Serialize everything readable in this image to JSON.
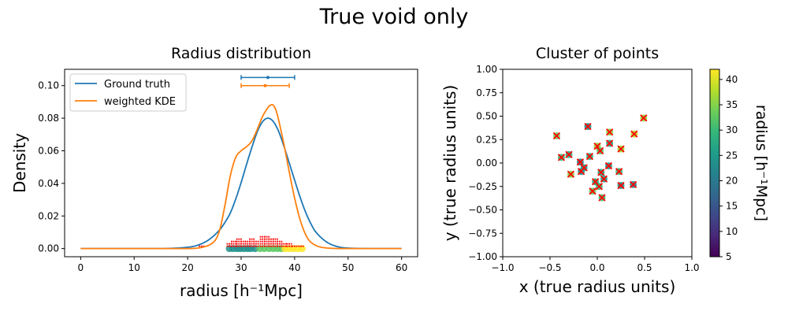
{
  "figure": {
    "suptitle": "True void only"
  },
  "chart_data": [
    {
      "type": "line",
      "title": "Radius distribution",
      "xlabel": "radius [h⁻¹Mpc]",
      "ylabel": "Density",
      "xlim": [
        -3,
        63
      ],
      "ylim": [
        -0.005,
        0.11
      ],
      "xticks": [
        0,
        10,
        20,
        30,
        40,
        50,
        60
      ],
      "yticks": [
        0.0,
        0.02,
        0.04,
        0.06,
        0.08,
        0.1
      ],
      "xtick_labels": [
        "0",
        "10",
        "20",
        "30",
        "40",
        "50",
        "60"
      ],
      "ytick_labels": [
        "0.00",
        "0.02",
        "0.04",
        "0.06",
        "0.08",
        "0.10"
      ],
      "legend_position": "upper-left",
      "series": [
        {
          "name": "Ground truth",
          "color": "#1f77b4",
          "x": [
            0,
            15,
            20,
            22,
            24,
            26,
            27,
            28,
            29,
            30,
            31,
            32,
            33,
            34,
            35,
            36,
            37,
            38,
            39,
            40,
            41,
            42,
            43,
            44,
            46,
            48,
            50,
            55,
            60
          ],
          "y": [
            0,
            0,
            0.0008,
            0.0022,
            0.0055,
            0.0115,
            0.0162,
            0.022,
            0.0305,
            0.0405,
            0.0515,
            0.062,
            0.0715,
            0.0778,
            0.08,
            0.078,
            0.072,
            0.0628,
            0.0525,
            0.042,
            0.0318,
            0.0228,
            0.0155,
            0.01,
            0.004,
            0.0012,
            0.0003,
            0,
            0
          ]
        },
        {
          "name": "weighted KDE",
          "color": "#ff7f0e",
          "x": [
            0,
            20,
            23,
            25,
            26,
            27,
            28,
            29,
            30,
            31,
            32,
            33,
            34,
            35,
            35.5,
            36,
            36.5,
            37,
            38,
            39,
            40,
            41,
            42,
            43,
            45,
            50,
            60
          ],
          "y": [
            0,
            0,
            0.001,
            0.0045,
            0.0115,
            0.027,
            0.045,
            0.056,
            0.06,
            0.0625,
            0.066,
            0.073,
            0.081,
            0.0865,
            0.088,
            0.088,
            0.085,
            0.079,
            0.064,
            0.047,
            0.031,
            0.018,
            0.009,
            0.004,
            0.0008,
            0,
            0
          ]
        }
      ],
      "errorbars": [
        {
          "series": "Ground truth",
          "color": "#1f77b4",
          "center": 35,
          "low": 30,
          "high": 40,
          "y": 0.105
        },
        {
          "series": "weighted KDE",
          "color": "#ff7f0e",
          "center": 34.5,
          "low": 30,
          "high": 39,
          "y": 0.1
        }
      ],
      "rug": {
        "marker_colors": [
          "#21908d",
          "#5dc963",
          "#fde725",
          "#ff0000"
        ],
        "points": [
          {
            "x": 27.8,
            "c": 0
          },
          {
            "x": 28.5,
            "c": 0
          },
          {
            "x": 29.2,
            "c": 0
          },
          {
            "x": 29.8,
            "c": 0
          },
          {
            "x": 30.5,
            "c": 0
          },
          {
            "x": 31.2,
            "c": 0
          },
          {
            "x": 31.8,
            "c": 0
          },
          {
            "x": 32.6,
            "c": 0
          },
          {
            "x": 33.5,
            "c": 1
          },
          {
            "x": 34.3,
            "c": 1
          },
          {
            "x": 35.2,
            "c": 1
          },
          {
            "x": 36.0,
            "c": 1
          },
          {
            "x": 36.8,
            "c": 1
          },
          {
            "x": 37.5,
            "c": 1
          },
          {
            "x": 38.2,
            "c": 2
          },
          {
            "x": 39.0,
            "c": 2
          },
          {
            "x": 39.8,
            "c": 2
          },
          {
            "x": 40.6,
            "c": 2
          },
          {
            "x": 41.4,
            "c": 2
          }
        ],
        "red_stacks": [
          {
            "x": 22.6,
            "n": 1
          },
          {
            "x": 27.8,
            "n": 2
          },
          {
            "x": 28.6,
            "n": 3
          },
          {
            "x": 29.6,
            "n": 4
          },
          {
            "x": 30.4,
            "n": 3
          },
          {
            "x": 31.2,
            "n": 3
          },
          {
            "x": 32.0,
            "n": 4
          },
          {
            "x": 32.8,
            "n": 3
          },
          {
            "x": 34.0,
            "n": 5
          },
          {
            "x": 34.8,
            "n": 5
          },
          {
            "x": 35.6,
            "n": 4
          },
          {
            "x": 36.4,
            "n": 4
          },
          {
            "x": 37.2,
            "n": 3
          },
          {
            "x": 38.0,
            "n": 2
          },
          {
            "x": 39.0,
            "n": 2
          },
          {
            "x": 40.0,
            "n": 1
          },
          {
            "x": 41.2,
            "n": 1
          }
        ]
      }
    },
    {
      "type": "scatter",
      "title": "Cluster of points",
      "xlabel": "x (true radius units)",
      "ylabel": "y (true radius units)",
      "xlim": [
        -1.0,
        1.0
      ],
      "ylim": [
        -1.0,
        1.0
      ],
      "xticks": [
        -1.0,
        -0.5,
        0.0,
        0.5,
        1.0
      ],
      "yticks": [
        -1.0,
        -0.75,
        -0.5,
        -0.25,
        0.0,
        0.25,
        0.5,
        0.75,
        1.0
      ],
      "xtick_labels": [
        "−1.0",
        "−0.5",
        "0.0",
        "0.5",
        "1.0"
      ],
      "ytick_labels": [
        "−1.00",
        "−0.75",
        "−0.50",
        "−0.25",
        "0.00",
        "0.25",
        "0.50",
        "0.75",
        "1.00"
      ],
      "cross_color": "#ff0000",
      "points": [
        {
          "x": -0.43,
          "y": 0.29,
          "r": 34
        },
        {
          "x": -0.38,
          "y": 0.06,
          "r": 30
        },
        {
          "x": -0.3,
          "y": 0.09,
          "r": 28
        },
        {
          "x": -0.28,
          "y": -0.12,
          "r": 35
        },
        {
          "x": -0.18,
          "y": 0.01,
          "r": 22
        },
        {
          "x": -0.17,
          "y": -0.09,
          "r": 24
        },
        {
          "x": -0.14,
          "y": -0.05,
          "r": 26
        },
        {
          "x": -0.1,
          "y": 0.39,
          "r": 24
        },
        {
          "x": -0.08,
          "y": 0.07,
          "r": 29
        },
        {
          "x": -0.05,
          "y": -0.3,
          "r": 33
        },
        {
          "x": -0.02,
          "y": -0.2,
          "r": 28
        },
        {
          "x": 0.0,
          "y": 0.18,
          "r": 36
        },
        {
          "x": 0.02,
          "y": -0.25,
          "r": 30
        },
        {
          "x": 0.03,
          "y": 0.13,
          "r": 32
        },
        {
          "x": 0.04,
          "y": -0.1,
          "r": 27
        },
        {
          "x": 0.05,
          "y": -0.37,
          "r": 31
        },
        {
          "x": 0.07,
          "y": -0.17,
          "r": 26
        },
        {
          "x": 0.12,
          "y": -0.03,
          "r": 25
        },
        {
          "x": 0.13,
          "y": 0.33,
          "r": 35
        },
        {
          "x": 0.13,
          "y": 0.21,
          "r": 27
        },
        {
          "x": 0.23,
          "y": -0.09,
          "r": 30
        },
        {
          "x": 0.25,
          "y": -0.24,
          "r": 24
        },
        {
          "x": 0.25,
          "y": 0.15,
          "r": 37
        },
        {
          "x": 0.38,
          "y": -0.23,
          "r": 23
        },
        {
          "x": 0.39,
          "y": 0.31,
          "r": 38
        },
        {
          "x": 0.49,
          "y": 0.48,
          "r": 36
        }
      ],
      "colorbar": {
        "label": "radius [h⁻¹Mpc]",
        "vmin": 5,
        "vmax": 42,
        "ticks": [
          5,
          10,
          15,
          20,
          25,
          30,
          35,
          40
        ],
        "tick_labels": [
          "5",
          "10",
          "15",
          "20",
          "25",
          "30",
          "35",
          "40"
        ],
        "colormap": "viridis",
        "stops": [
          "#440154",
          "#482878",
          "#3e4989",
          "#31688e",
          "#26828e",
          "#1f9e89",
          "#35b779",
          "#6ece58",
          "#b5de2b",
          "#fde725"
        ]
      }
    }
  ]
}
